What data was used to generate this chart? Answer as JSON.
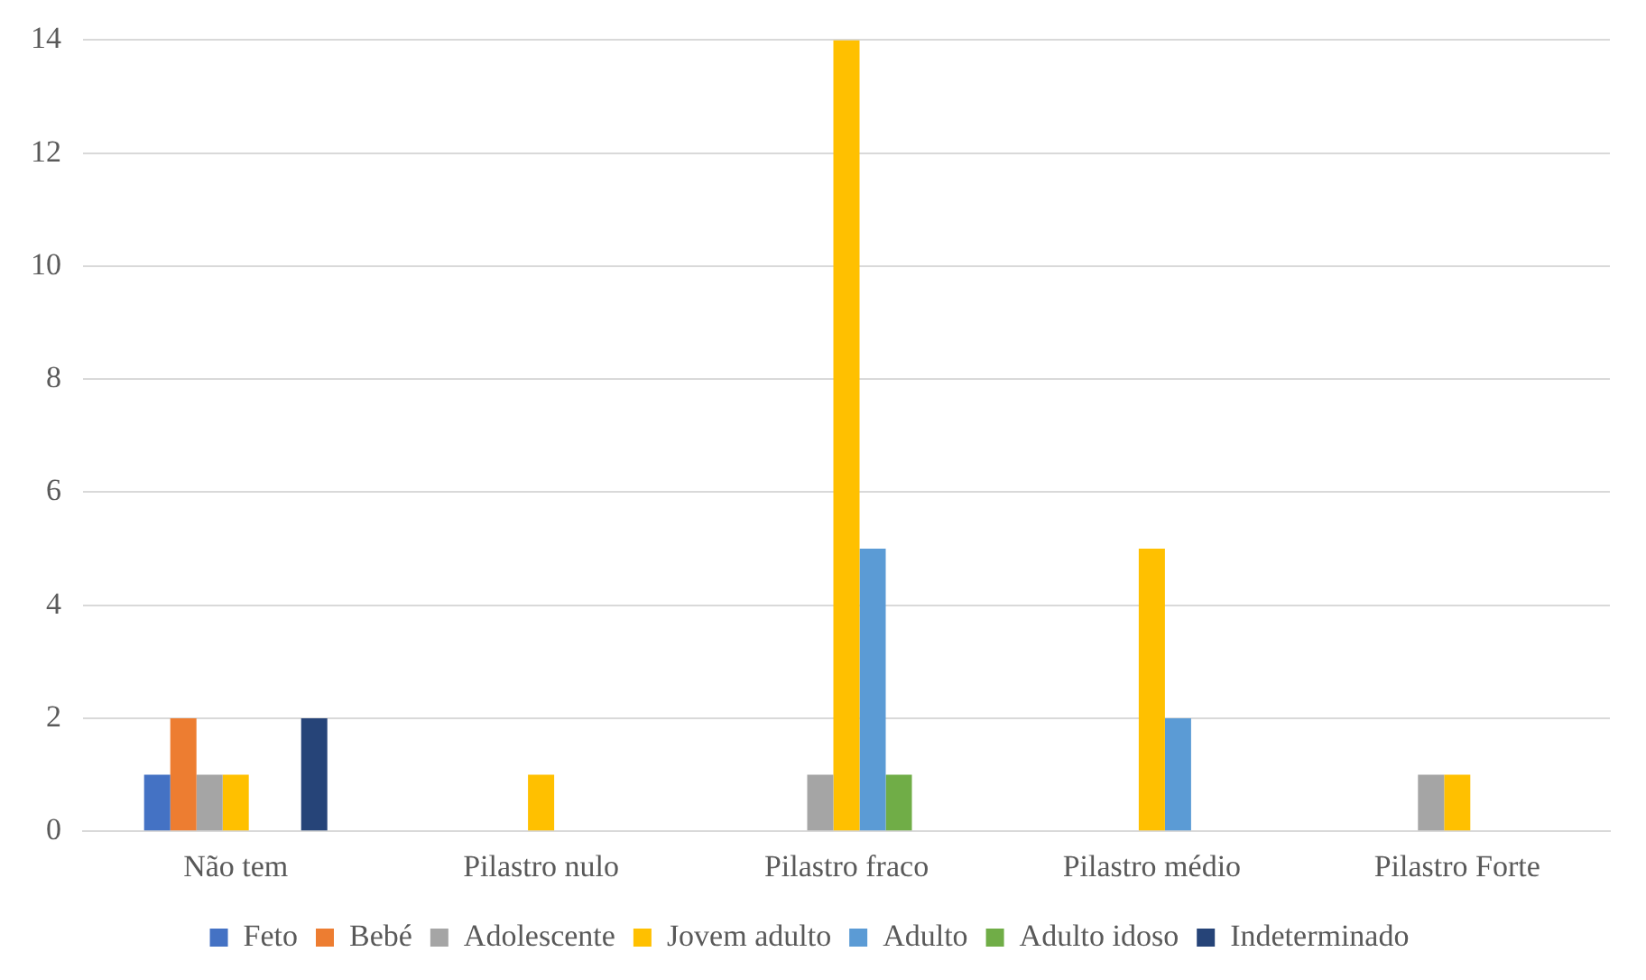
{
  "chart_data": {
    "type": "bar",
    "categories": [
      "Não tem",
      "Pilastro nulo",
      "Pilastro fraco",
      "Pilastro médio",
      "Pilastro Forte"
    ],
    "series": [
      {
        "name": "Feto",
        "color": "#4472c4",
        "values": [
          1,
          0,
          0,
          0,
          0
        ]
      },
      {
        "name": "Bebé",
        "color": "#ed7d31",
        "values": [
          2,
          0,
          0,
          0,
          0
        ]
      },
      {
        "name": "Adolescente",
        "color": "#a5a5a5",
        "values": [
          1,
          0,
          1,
          0,
          1
        ]
      },
      {
        "name": "Jovem adulto",
        "color": "#ffc000",
        "values": [
          1,
          1,
          14,
          5,
          1
        ]
      },
      {
        "name": "Adulto",
        "color": "#5b9bd5",
        "values": [
          0,
          0,
          5,
          2,
          0
        ]
      },
      {
        "name": "Adulto idoso",
        "color": "#70ad47",
        "values": [
          0,
          0,
          1,
          0,
          0
        ]
      },
      {
        "name": "Indeterminado",
        "color": "#264478",
        "values": [
          2,
          0,
          0,
          0,
          0
        ]
      }
    ],
    "ylim": [
      0,
      14
    ],
    "yticks": [
      0,
      2,
      4,
      6,
      8,
      10,
      12,
      14
    ],
    "grid": "y",
    "legend": "bottom"
  }
}
